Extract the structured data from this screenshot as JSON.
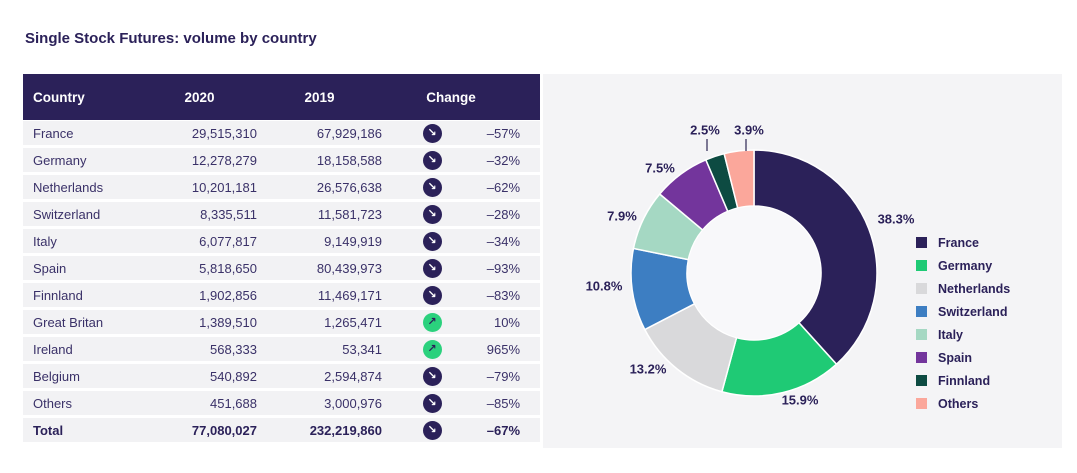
{
  "page": {
    "title": "Single Stock Futures: volume by country"
  },
  "table": {
    "headers": {
      "country": "Country",
      "y2020": "2020",
      "y2019": "2019",
      "change": "Change"
    },
    "rows": [
      {
        "country": "France",
        "v2020": "29,515,310",
        "v2019": "67,929,186",
        "trend": "down",
        "change": "–57%"
      },
      {
        "country": "Germany",
        "v2020": "12,278,279",
        "v2019": "18,158,588",
        "trend": "down",
        "change": "–32%"
      },
      {
        "country": "Netherlands",
        "v2020": "10,201,181",
        "v2019": "26,576,638",
        "trend": "down",
        "change": "–62%"
      },
      {
        "country": "Switzerland",
        "v2020": "8,335,511",
        "v2019": "11,581,723",
        "trend": "down",
        "change": "–28%"
      },
      {
        "country": "Italy",
        "v2020": "6,077,817",
        "v2019": "9,149,919",
        "trend": "down",
        "change": "–34%"
      },
      {
        "country": "Spain",
        "v2020": "5,818,650",
        "v2019": "80,439,973",
        "trend": "down",
        "change": "–93%"
      },
      {
        "country": "Finnland",
        "v2020": "1,902,856",
        "v2019": "11,469,171",
        "trend": "down",
        "change": "–83%"
      },
      {
        "country": "Great Britan",
        "v2020": "1,389,510",
        "v2019": "1,265,471",
        "trend": "up",
        "change": "10%"
      },
      {
        "country": "Ireland",
        "v2020": "568,333",
        "v2019": "53,341",
        "trend": "up",
        "change": "965%"
      },
      {
        "country": "Belgium",
        "v2020": "540,892",
        "v2019": "2,594,874",
        "trend": "down",
        "change": "–79%"
      },
      {
        "country": "Others",
        "v2020": "451,688",
        "v2019": "3,000,976",
        "trend": "down",
        "change": "–85%"
      },
      {
        "country": "Total",
        "v2020": "77,080,027",
        "v2019": "232,219,860",
        "trend": "down",
        "change": "–67%",
        "bold": true
      }
    ]
  },
  "icons": {
    "trend_down": "↘",
    "trend_up": "↗"
  },
  "colors": {
    "navy": "#2b2159",
    "row_text": "#3a3168",
    "row_bg": "#f2f2f4",
    "panel_bg": "#f4f4f6",
    "donut_hole": "#f8f8fa",
    "up_green": "#2bd17d",
    "tick": "#7c7894"
  },
  "chart_data": {
    "type": "pie",
    "subtype": "donut",
    "title": "",
    "categories": [
      "France",
      "Germany",
      "Netherlands",
      "Switzerland",
      "Italy",
      "Spain",
      "Finnland",
      "Others"
    ],
    "values": [
      38.3,
      15.9,
      13.2,
      10.8,
      7.9,
      7.5,
      2.5,
      3.9
    ],
    "labels": [
      "38.3%",
      "15.9%",
      "13.2%",
      "10.8%",
      "7.9%",
      "7.5%",
      "2.5%",
      "3.9%"
    ],
    "colors": [
      "#2b2159",
      "#1fca75",
      "#d9d9db",
      "#3d7ec2",
      "#a5d8c3",
      "#73359c",
      "#0d4b42",
      "#fba79b"
    ],
    "legend_position": "right",
    "start_angle_deg": 0,
    "direction": "clockwise"
  }
}
